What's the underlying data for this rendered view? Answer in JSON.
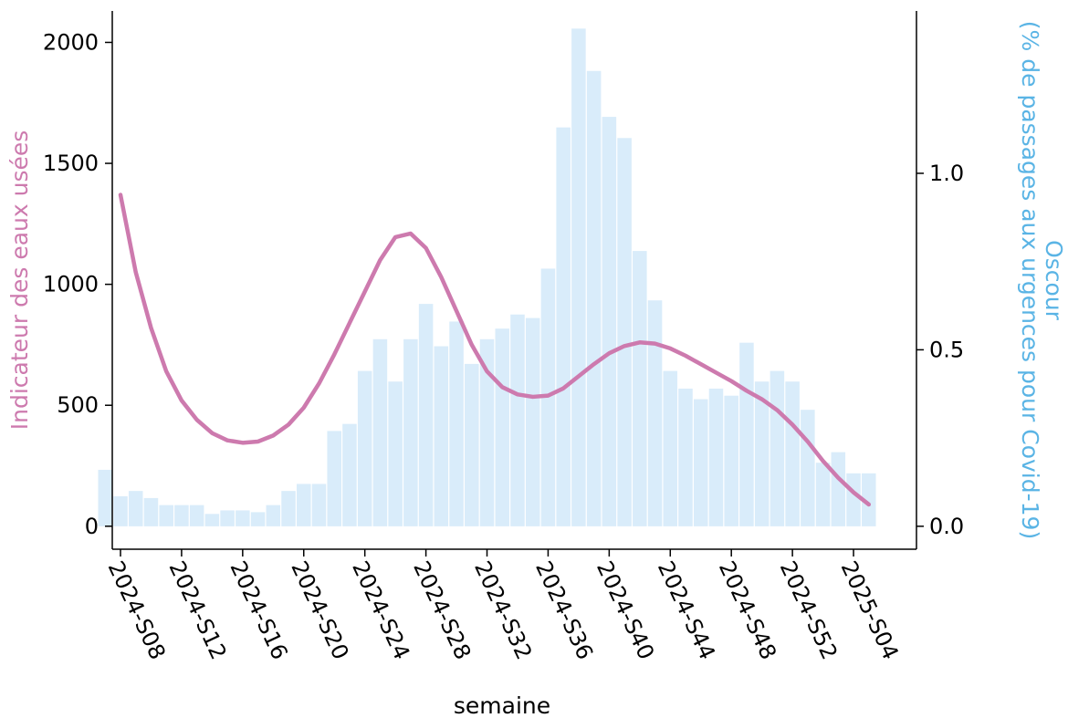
{
  "chart_data": {
    "type": "bar+line",
    "xlabel": "semaine",
    "ylabel_left": "Indicateur des eaux usées",
    "ylabel_right_line1": "Oscour",
    "ylabel_right_line2": "(% de passages aux urgences pour Covid-19)",
    "x_tick_labels": [
      "2024-S08",
      "2024-S12",
      "2024-S16",
      "2024-S20",
      "2024-S24",
      "2024-S28",
      "2024-S32",
      "2024-S36",
      "2024-S40",
      "2024-S44",
      "2024-S48",
      "2024-S52",
      "2025-S04"
    ],
    "left_axis": {
      "ylim": [
        -95,
        2130
      ],
      "ticks": [
        "0",
        "500",
        "1000",
        "1500",
        "2000"
      ]
    },
    "right_axis": {
      "ylim": [
        -0.065,
        1.46
      ],
      "ticks": [
        "0.0",
        "0.5",
        "1.0"
      ]
    },
    "weeks": [
      "2024-S07",
      "2024-S08",
      "2024-S09",
      "2024-S10",
      "2024-S11",
      "2024-S12",
      "2024-S13",
      "2024-S14",
      "2024-S15",
      "2024-S16",
      "2024-S17",
      "2024-S18",
      "2024-S19",
      "2024-S20",
      "2024-S21",
      "2024-S22",
      "2024-S23",
      "2024-S24",
      "2024-S25",
      "2024-S26",
      "2024-S27",
      "2024-S28",
      "2024-S29",
      "2024-S30",
      "2024-S31",
      "2024-S32",
      "2024-S33",
      "2024-S34",
      "2024-S35",
      "2024-S36",
      "2024-S37",
      "2024-S38",
      "2024-S39",
      "2024-S40",
      "2024-S41",
      "2024-S42",
      "2024-S43",
      "2024-S44",
      "2024-S45",
      "2024-S46",
      "2024-S47",
      "2024-S48",
      "2024-S49",
      "2024-S50",
      "2024-S51",
      "2024-S52",
      "2025-S01",
      "2025-S02",
      "2025-S03",
      "2025-S04",
      "2025-S05",
      "2025-S06"
    ],
    "series": [
      {
        "type": "bar",
        "axis": "right",
        "color": "#d9ecfa",
        "values": [
          0.16,
          0.085,
          0.1,
          0.08,
          0.06,
          0.06,
          0.06,
          0.035,
          0.045,
          0.045,
          0.04,
          0.06,
          0.1,
          0.12,
          0.12,
          0.27,
          0.29,
          0.44,
          0.53,
          0.41,
          0.53,
          0.63,
          0.51,
          0.58,
          0.46,
          0.53,
          0.56,
          0.6,
          0.59,
          0.73,
          1.13,
          1.41,
          1.29,
          1.16,
          1.1,
          0.78,
          0.64,
          0.44,
          0.39,
          0.36,
          0.39,
          0.37,
          0.52,
          0.41,
          0.44,
          0.41,
          0.33,
          0.18,
          0.21,
          0.15,
          0.15
        ]
      },
      {
        "type": "line",
        "axis": "left",
        "color": "#cd7aae",
        "x_start_week_index": 1,
        "values": [
          1370,
          1050,
          820,
          640,
          520,
          440,
          385,
          355,
          345,
          350,
          375,
          420,
          490,
          590,
          710,
          840,
          970,
          1100,
          1195,
          1210,
          1150,
          1030,
          890,
          750,
          640,
          575,
          545,
          535,
          540,
          570,
          620,
          670,
          715,
          745,
          760,
          755,
          735,
          705,
          670,
          635,
          600,
          560,
          525,
          480,
          420,
          350,
          270,
          200,
          140,
          90
        ]
      }
    ]
  }
}
